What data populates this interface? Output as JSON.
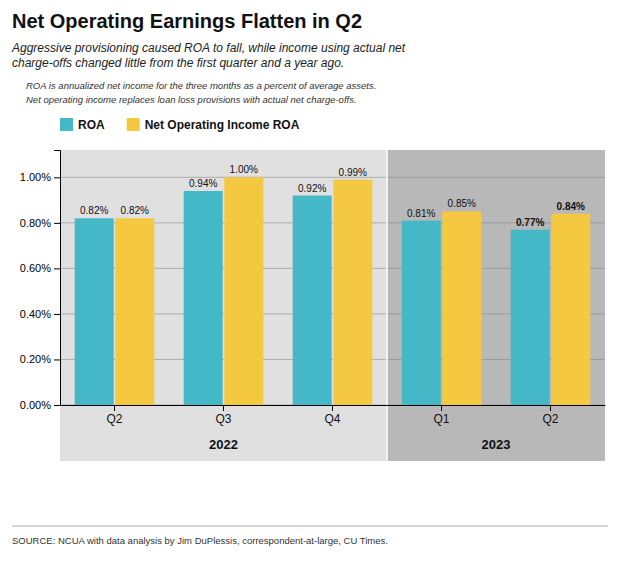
{
  "chart_data": {
    "type": "bar",
    "title": "Net Operating Earnings Flatten in Q2",
    "subtitle": "Aggressive provisioning caused ROA to fall, while income using actual net\ncharge-offs changed little from the first quarter and a year ago.",
    "annotations": [
      "ROA is annualized net income for the three months as a percent of average assets.",
      "Net operating income replaces loan loss provisions with actual net charge-offs."
    ],
    "source": "SOURCE: NCUA with data analysis by Jim DuPlessis, correspondent-at-large, CU Times.",
    "categories": [
      "Q2",
      "Q3",
      "Q4",
      "Q1",
      "Q2"
    ],
    "groups": [
      {
        "name": "2022",
        "size": 3,
        "color": "#E0E0E0"
      },
      {
        "name": "2023",
        "size": 2,
        "color": "#B8B8B8"
      }
    ],
    "series": [
      {
        "name": "ROA",
        "color": "#45B8C8",
        "values": [
          0.0082,
          0.0094,
          0.0092,
          0.0081,
          0.0077
        ],
        "value_labels": [
          "0.82%",
          "0.94%",
          "0.92%",
          "0.81%",
          "0.77%"
        ]
      },
      {
        "name": "Net Operating Income ROA",
        "color": "#F5C842",
        "values": [
          0.0082,
          0.01,
          0.0099,
          0.0085,
          0.0084
        ],
        "value_labels": [
          "0.82%",
          "1.00%",
          "0.99%",
          "0.85%",
          "0.84%"
        ]
      }
    ],
    "ylim": [
      0,
      0.0112
    ],
    "yticks": [
      {
        "value": 0.0,
        "label": "0.00%"
      },
      {
        "value": 0.002,
        "label": "0.20%"
      },
      {
        "value": 0.004,
        "label": "0.40%"
      },
      {
        "value": 0.006,
        "label": "0.60%"
      },
      {
        "value": 0.008,
        "label": "0.80%"
      },
      {
        "value": 0.01,
        "label": "1.00%"
      }
    ],
    "grid": true,
    "legend": "top",
    "data_labels": true
  }
}
